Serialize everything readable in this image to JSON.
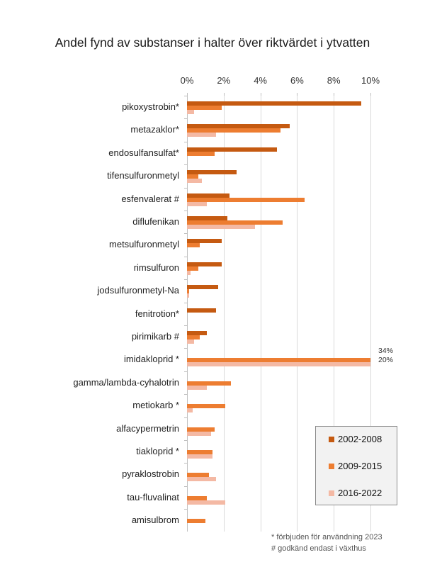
{
  "chart_data": {
    "type": "bar",
    "orientation": "horizontal",
    "title": "Andel fynd av substanser i halter över riktvärdet i ytvatten",
    "xlabel": "",
    "ylabel": "",
    "xlim": [
      0,
      10
    ],
    "x_ticks": [
      "0%",
      "2%",
      "4%",
      "6%",
      "8%",
      "10%"
    ],
    "grid": true,
    "legend_position": "lower right",
    "categories": [
      "pikoxystrobin*",
      "metazaklor*",
      "endosulfansulfat*",
      "tifensulfuronmetyl",
      "esfenvalerat #",
      "diflufenikan",
      "metsulfuronmetyl",
      "rimsulfuron",
      "jodsulfuronmetyl-Na",
      "fenitrotion*",
      "pirimikarb #",
      "imidakloprid *",
      "gamma/lambda-cyhalotrin",
      "metiokarb *",
      "alfacypermetrin",
      "tiakloprid *",
      "pyraklostrobin",
      "tau-fluvalinat",
      "amisulbrom"
    ],
    "series": [
      {
        "name": "2002-2008",
        "color": "#c55a11",
        "values": [
          9.5,
          5.6,
          4.9,
          2.7,
          2.3,
          2.2,
          1.9,
          1.9,
          1.7,
          1.6,
          1.1,
          0,
          0,
          0,
          0,
          0,
          0,
          0,
          0
        ]
      },
      {
        "name": "2009-2015",
        "color": "#ed7d31",
        "values": [
          1.9,
          5.1,
          1.5,
          0.6,
          6.4,
          5.2,
          0.7,
          0.6,
          0.1,
          0,
          0.7,
          34,
          2.4,
          2.1,
          1.5,
          1.4,
          1.2,
          1.1,
          1.0
        ]
      },
      {
        "name": "2016-2022",
        "color": "#f4b9a4",
        "values": [
          0.4,
          1.6,
          0,
          0.8,
          1.1,
          3.7,
          0,
          0.2,
          0.1,
          0,
          0.4,
          20,
          1.1,
          0.3,
          1.3,
          1.4,
          1.6,
          2.1,
          0
        ]
      }
    ],
    "annotations": [
      {
        "category": "imidakloprid *",
        "series": "2009-2015",
        "text": "34%"
      },
      {
        "category": "imidakloprid *",
        "series": "2016-2022",
        "text": "20%"
      }
    ],
    "footnotes": [
      "* förbjuden för användning 2023",
      "# godkänd endast i växthus"
    ]
  },
  "title": "Andel fynd av substanser i halter över riktvärdet i ytvatten",
  "legend": [
    "2002-2008",
    "2009-2015",
    "2016-2022"
  ],
  "footnotes": [
    "* förbjuden för användning 2023",
    "# godkänd endast i växthus"
  ]
}
